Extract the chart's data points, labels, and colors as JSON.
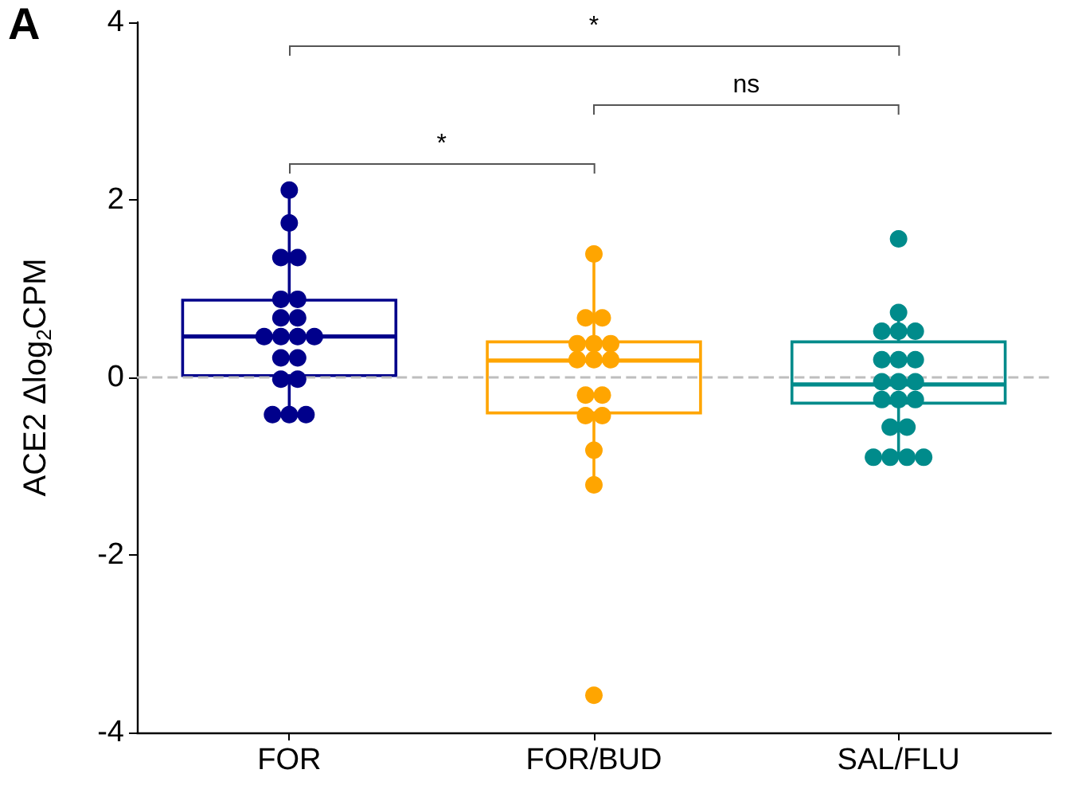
{
  "chart_data": {
    "type": "box",
    "title": "A",
    "ylabel": "ACE2 Δlog$_{2}$CPM",
    "categories": [
      "FOR",
      "FOR/BUD",
      "SAL/FLU"
    ],
    "colors": [
      "#00008b",
      "#ffa500",
      "#008b8b"
    ],
    "boxes": [
      {
        "low": -0.42,
        "q1": 0.02,
        "median": 0.46,
        "q3": 0.87,
        "high": 2.11
      },
      {
        "low": -1.21,
        "q1": -0.4,
        "median": 0.19,
        "q3": 0.4,
        "high": 1.39
      },
      {
        "low": -0.9,
        "q1": -0.29,
        "median": -0.08,
        "q3": 0.4,
        "high": 0.73
      }
    ],
    "series": [
      {
        "type": "scatter",
        "color": "#00008b",
        "x": [
          "FOR",
          "FOR",
          "FOR",
          "FOR",
          "FOR",
          "FOR",
          "FOR",
          "FOR",
          "FOR",
          "FOR",
          "FOR",
          "FOR",
          "FOR",
          "FOR",
          "FOR",
          "FOR",
          "FOR",
          "FOR",
          "FOR"
        ],
        "values": [
          2.11,
          1.74,
          1.35,
          1.35,
          0.88,
          0.88,
          0.67,
          0.67,
          0.46,
          0.46,
          0.46,
          0.46,
          0.22,
          0.22,
          -0.02,
          -0.02,
          -0.42,
          -0.42,
          -0.42
        ]
      },
      {
        "type": "scatter",
        "color": "#ffa500",
        "x": [
          "FOR/BUD",
          "FOR/BUD",
          "FOR/BUD",
          "FOR/BUD",
          "FOR/BUD",
          "FOR/BUD",
          "FOR/BUD",
          "FOR/BUD",
          "FOR/BUD",
          "FOR/BUD",
          "FOR/BUD",
          "FOR/BUD",
          "FOR/BUD",
          "FOR/BUD",
          "FOR/BUD",
          "FOR/BUD"
        ],
        "values": [
          1.39,
          0.67,
          0.67,
          0.38,
          0.38,
          0.38,
          0.2,
          0.2,
          0.2,
          -0.2,
          -0.2,
          -0.43,
          -0.43,
          -0.82,
          -1.21,
          -3.58
        ]
      },
      {
        "type": "scatter",
        "color": "#008b8b",
        "x": [
          "SAL/FLU",
          "SAL/FLU",
          "SAL/FLU",
          "SAL/FLU",
          "SAL/FLU",
          "SAL/FLU",
          "SAL/FLU",
          "SAL/FLU",
          "SAL/FLU",
          "SAL/FLU",
          "SAL/FLU",
          "SAL/FLU",
          "SAL/FLU",
          "SAL/FLU",
          "SAL/FLU",
          "SAL/FLU",
          "SAL/FLU",
          "SAL/FLU",
          "SAL/FLU",
          "SAL/FLU"
        ],
        "values": [
          1.56,
          0.73,
          0.52,
          0.52,
          0.52,
          0.2,
          0.2,
          0.2,
          -0.05,
          -0.05,
          -0.05,
          -0.25,
          -0.25,
          -0.25,
          -0.56,
          -0.56,
          -0.9,
          -0.9,
          -0.9,
          -0.9
        ]
      }
    ],
    "ylim": [
      -4,
      4
    ],
    "yticks": [
      -4,
      -2,
      0,
      2,
      4
    ],
    "ref_lines": [
      {
        "axis": "y",
        "value": 0,
        "color": "#bebebe",
        "line_style": "dashed"
      }
    ],
    "annotations": [
      "*",
      "ns",
      "*"
    ],
    "marker": "circle"
  }
}
